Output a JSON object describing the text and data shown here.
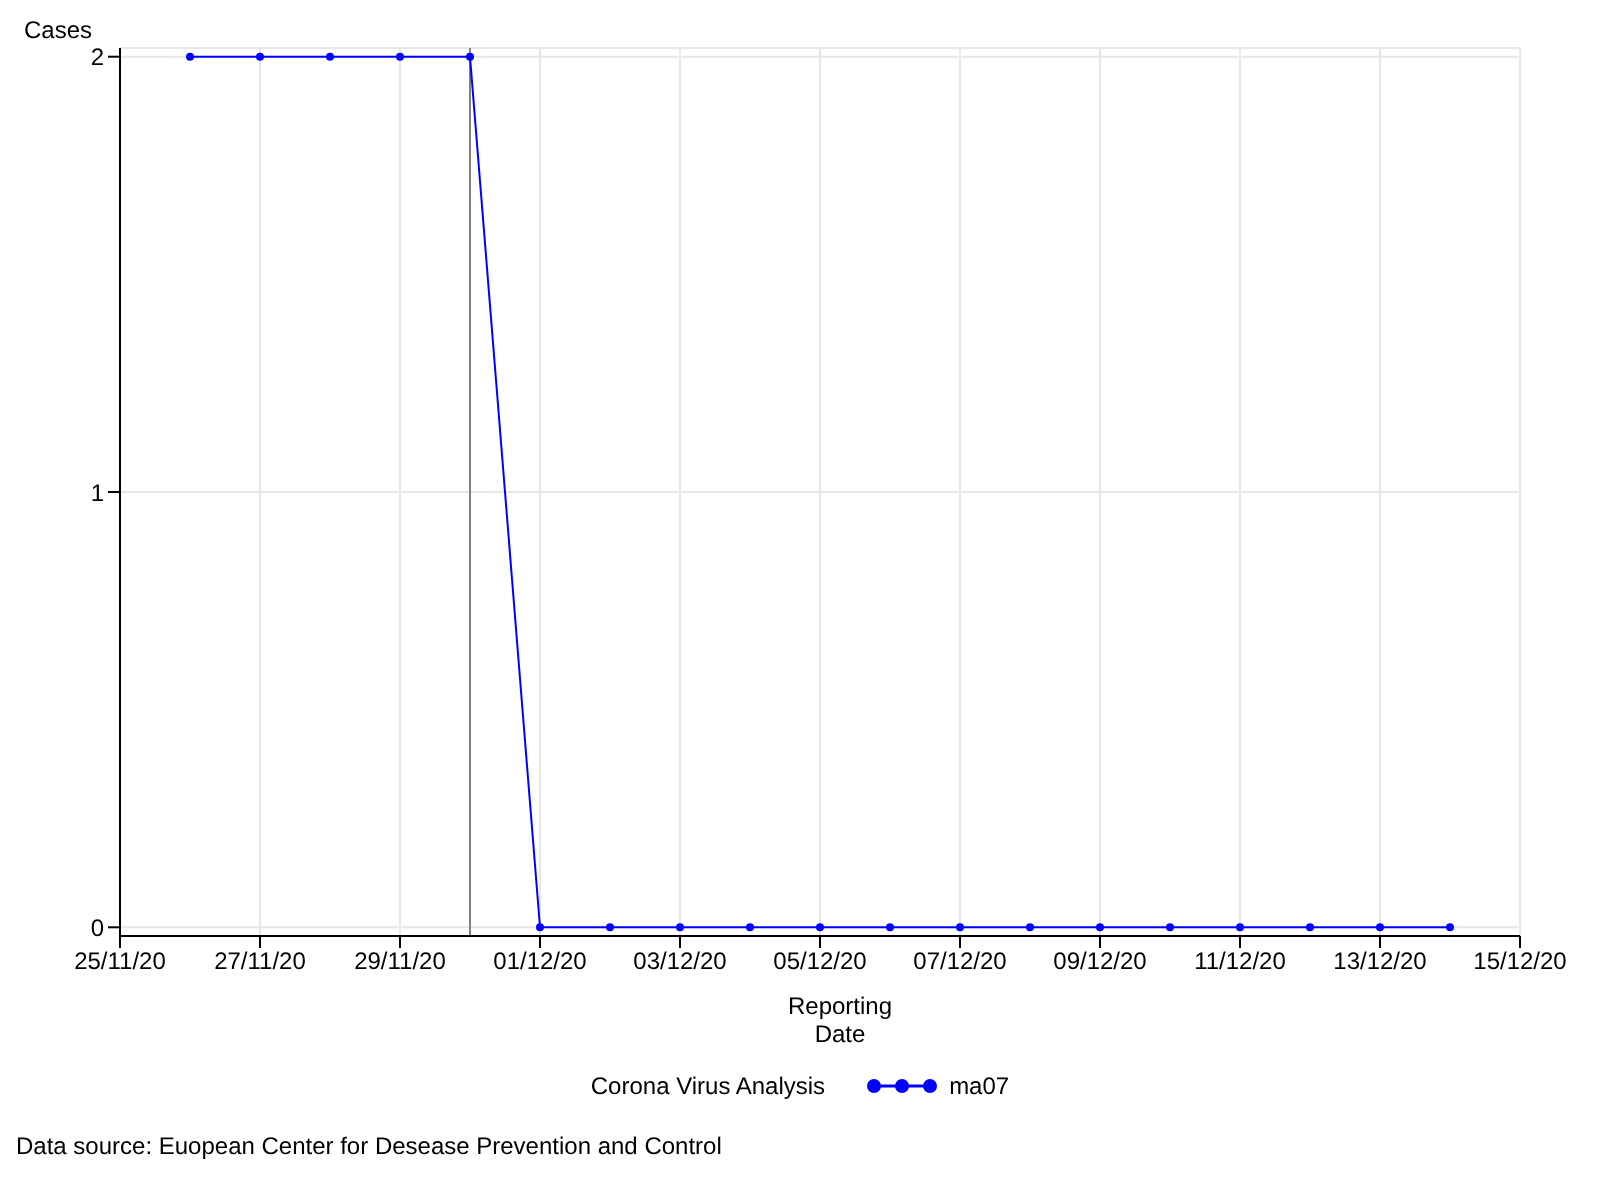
{
  "chart_data": {
    "type": "line",
    "ylabel": "Cases",
    "xlabel": "Reporting Date",
    "legend_title": "Corona Virus Analysis",
    "legend": "bottom",
    "grid": true,
    "marker": "circle",
    "line_style": "solid",
    "x": [
      "--11-26",
      "--11-27",
      "--11-28",
      "--11-29",
      "--11-30",
      "--12-01",
      "--12-02",
      "--12-03",
      "--12-04",
      "--12-05",
      "--12-06",
      "--12-07",
      "--12-08",
      "--12-09",
      "--12-10",
      "--12-11",
      "--12-12",
      "--12-13",
      "--12-14"
    ],
    "series": [
      {
        "name": "ma07",
        "color": "#0000ff",
        "values": [
          2,
          2,
          2,
          2,
          2,
          0,
          0,
          0,
          0,
          0,
          0,
          0,
          0,
          0,
          0,
          0,
          0,
          0,
          0
        ]
      }
    ],
    "xlim": [
      "--11-25",
      "--12-15"
    ],
    "xticks": [
      {
        "value": "--11-25",
        "label": "25/11/20"
      },
      {
        "value": "--11-27",
        "label": "27/11/20"
      },
      {
        "value": "--11-29",
        "label": "29/11/20"
      },
      {
        "value": "--12-01",
        "label": "01/12/20"
      },
      {
        "value": "--12-03",
        "label": "03/12/20"
      },
      {
        "value": "--12-05",
        "label": "05/12/20"
      },
      {
        "value": "--12-07",
        "label": "07/12/20"
      },
      {
        "value": "--12-09",
        "label": "09/12/20"
      },
      {
        "value": "--12-11",
        "label": "11/12/20"
      },
      {
        "value": "--12-13",
        "label": "13/12/20"
      },
      {
        "value": "--12-15",
        "label": "15/12/20"
      }
    ],
    "ylim": [
      -0.02,
      2.02
    ],
    "yticks": [
      0,
      1,
      2
    ],
    "ref_lines": [
      {
        "axis": "x",
        "value": "--11-30",
        "color": "#808080"
      }
    ],
    "annotations": [
      "Data source: Euopean Center for Desease Prevention and Control"
    ]
  }
}
